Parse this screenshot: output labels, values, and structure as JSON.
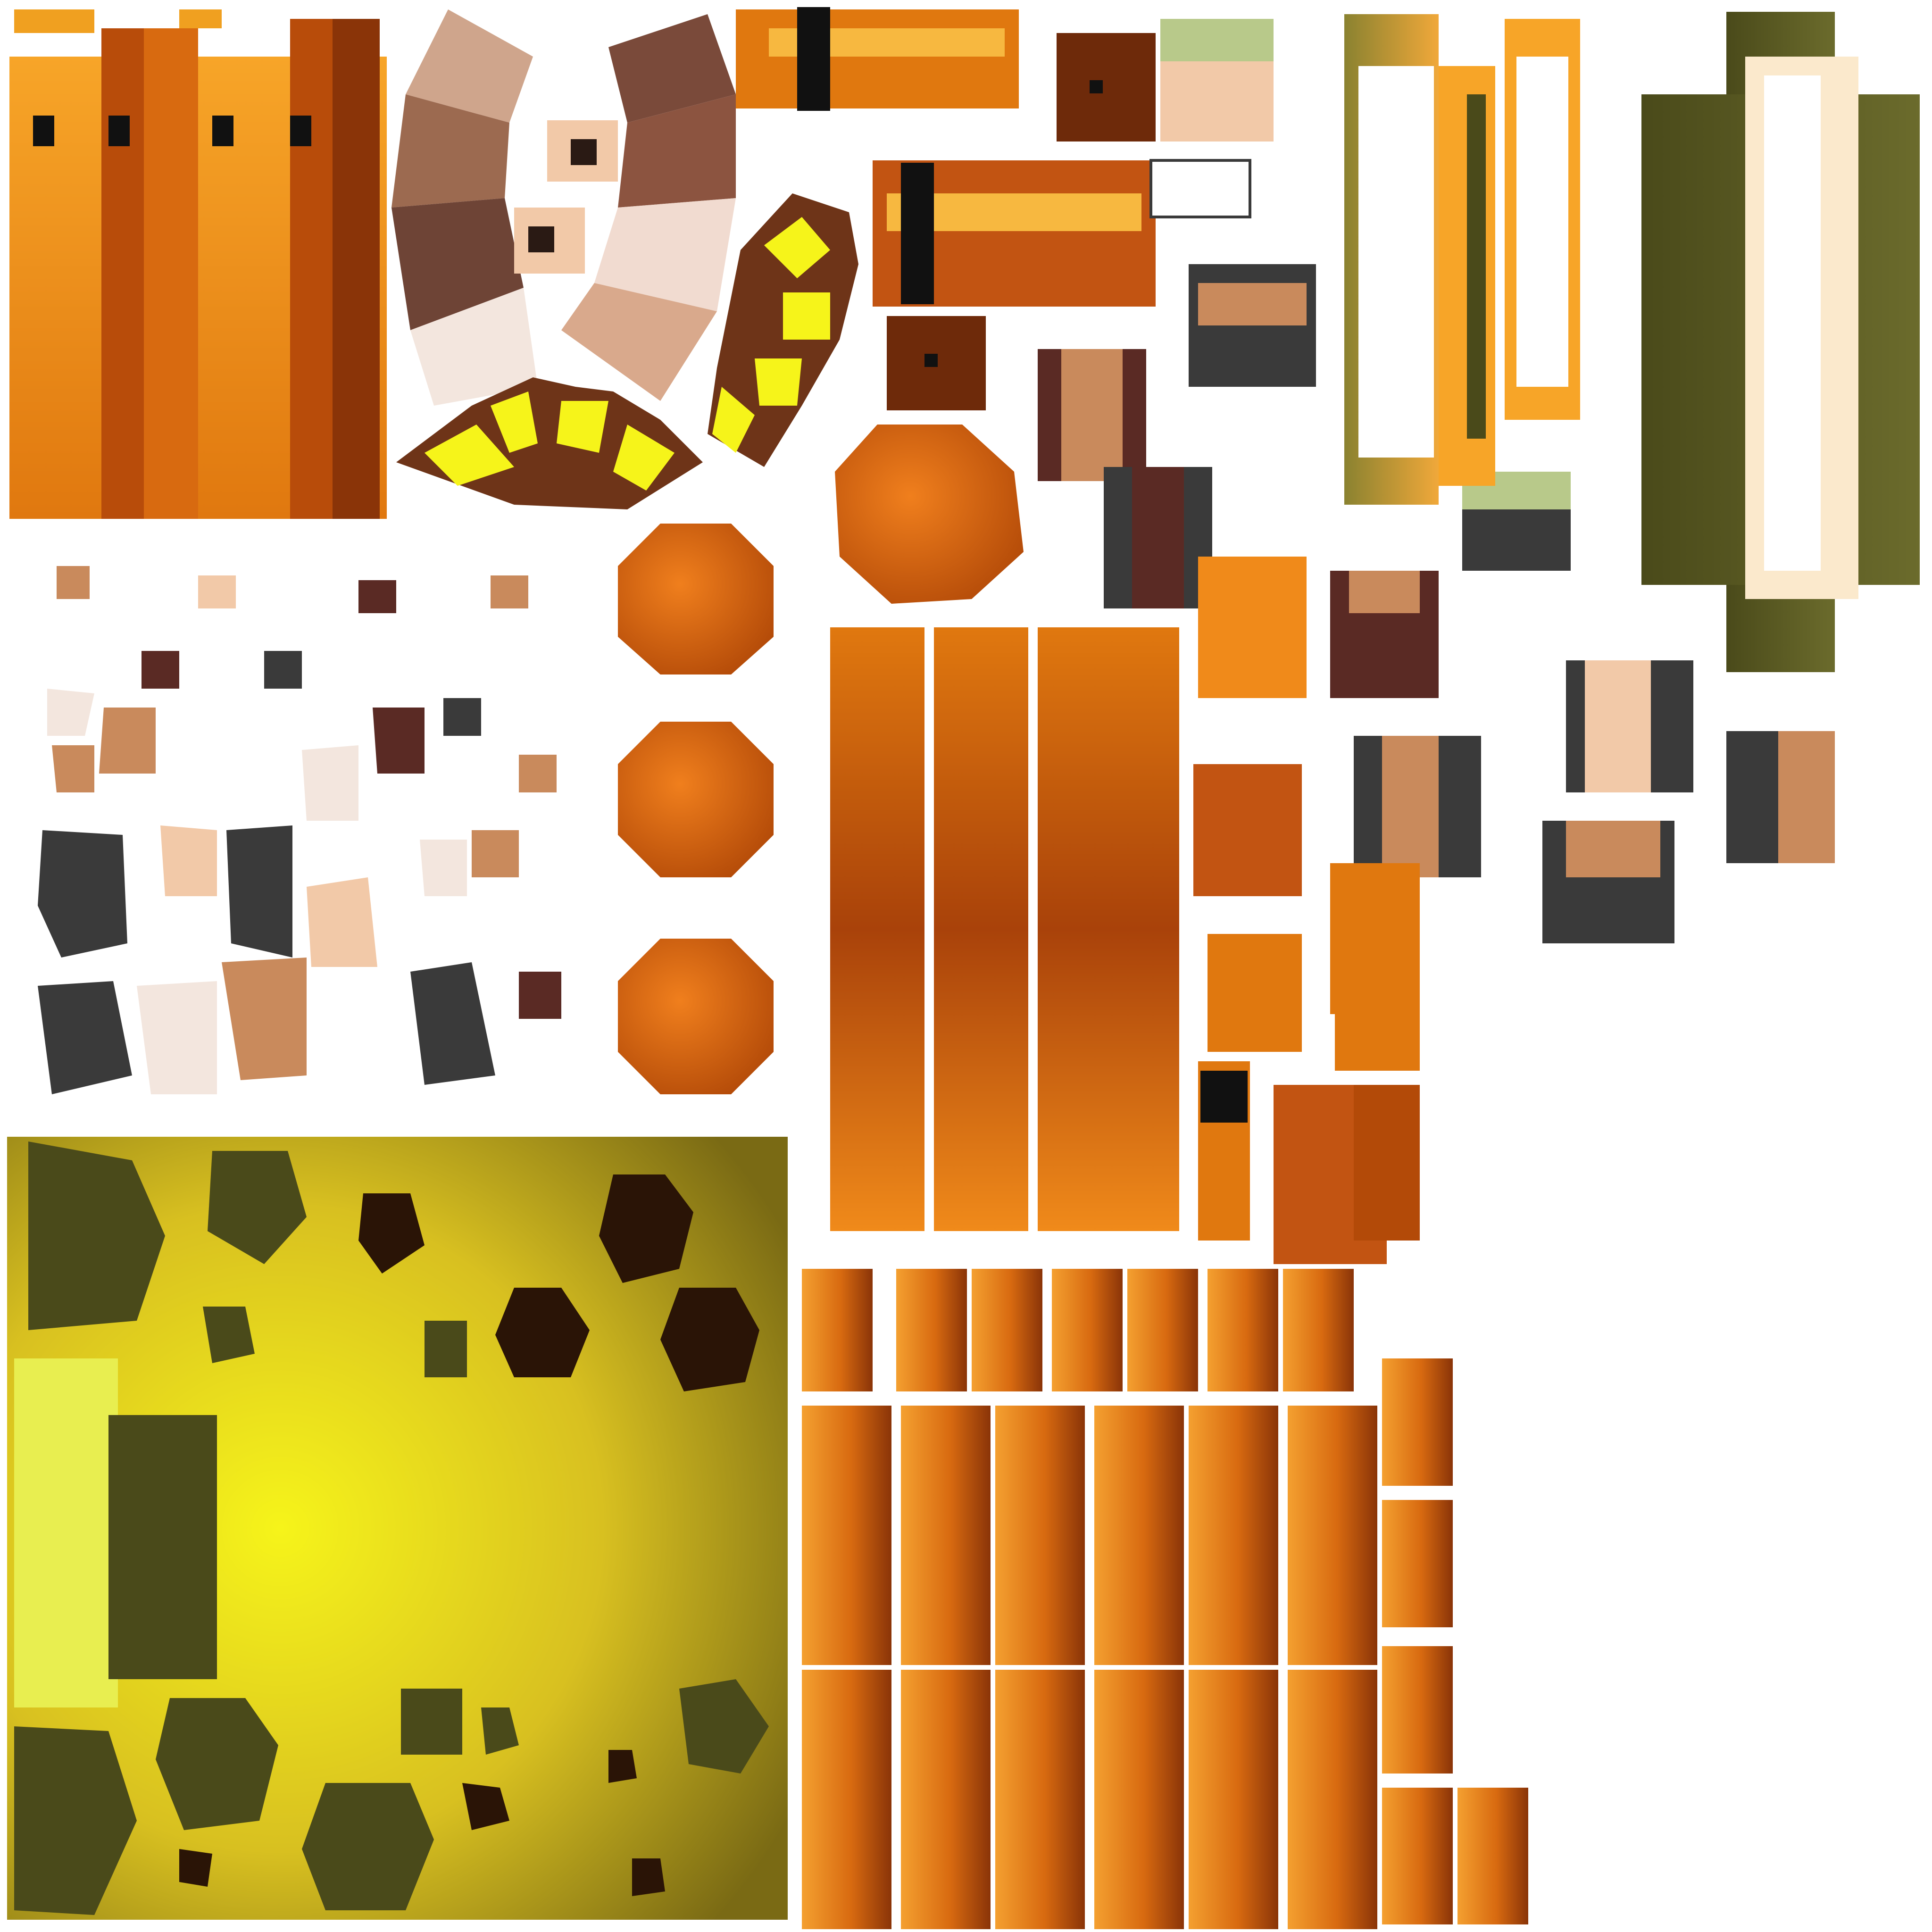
{
  "atlas": {
    "background": "#ffffff",
    "palette": {
      "orange_light": "#f7a528",
      "orange_mid": "#e0780f",
      "orange_dark": "#b34a08",
      "brown_dark": "#6e2a0a",
      "rust": "#c25412",
      "yellow_bright": "#f6f41a",
      "olive_dark": "#4a4a1a",
      "olive_mid": "#6b6b2c",
      "skin_light": "#f2c9a8",
      "skin_mid": "#c98a5c",
      "maroon": "#5a2a24",
      "charcoal": "#3a3a3a",
      "black": "#111111",
      "white": "#ffffff",
      "cream": "#fbe9cc"
    },
    "regions": [
      {
        "name": "tower-pillar-strips",
        "kind": "pillars"
      },
      {
        "name": "arch-fan-panels",
        "kind": "fan"
      },
      {
        "name": "window-frame-arcs",
        "kind": "frames"
      },
      {
        "name": "barrel-cylinders",
        "kind": "barrels"
      },
      {
        "name": "octagon-discs",
        "kind": "octagons"
      },
      {
        "name": "tall-column-strips",
        "kind": "columns"
      },
      {
        "name": "character-figure-parts",
        "kind": "figures"
      },
      {
        "name": "doorway-panels",
        "kind": "doorways"
      },
      {
        "name": "debris-fragment-cluster",
        "kind": "debris"
      },
      {
        "name": "ground-lightmap",
        "kind": "lightmap"
      },
      {
        "name": "small-block-grid",
        "kind": "blocks"
      }
    ]
  }
}
